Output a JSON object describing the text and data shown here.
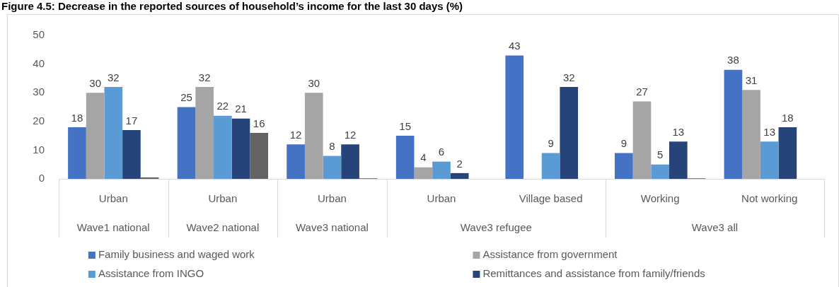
{
  "chart_data": {
    "type": "bar",
    "title": "Figure 4.5: Decrease in the reported sources of household’s income for the last 30 days (%)",
    "categories": [
      "Urban",
      "Urban",
      "Urban",
      "Urban",
      "Village based",
      "Working",
      "Not working"
    ],
    "annotations": [
      "Wave1 national",
      "Wave2 national",
      "Wave3 national",
      "Wave3 refugee",
      "Wave3 all"
    ],
    "series": [
      {
        "name": "Family business and waged work",
        "color": "#4472c4",
        "values": [
          18,
          25,
          12,
          15,
          43,
          9,
          38
        ],
        "value_labels": [
          "18",
          "25",
          "12",
          "15",
          "43",
          "9",
          "38"
        ]
      },
      {
        "name": "Assistance from government",
        "color": "#a5a5a5",
        "values": [
          30,
          32,
          30,
          4,
          null,
          27,
          31
        ],
        "value_labels": [
          "30",
          "32",
          "30",
          "4",
          null,
          "27",
          "31"
        ]
      },
      {
        "name": "Assistance from INGO",
        "color": "#5b9bd5",
        "values": [
          32,
          22,
          8,
          6,
          9,
          5,
          13
        ],
        "value_labels": [
          "32",
          "22",
          "8",
          "6",
          "9",
          "5",
          "13"
        ]
      },
      {
        "name": "Remittances and assistance from family/friends",
        "color": "#264478",
        "values": [
          17,
          21,
          12,
          2,
          32,
          13,
          18
        ],
        "value_labels": [
          "17",
          "21",
          "12",
          "2",
          "32",
          "13",
          "18"
        ]
      },
      {
        "color": "#636363",
        "values": [
          0.5,
          16,
          0.2,
          null,
          null,
          0.2,
          null
        ],
        "value_labels": [
          null,
          "16",
          null,
          null,
          null,
          null,
          null
        ]
      }
    ],
    "ylim": [
      0,
      50
    ],
    "yticks": [
      0,
      10,
      20,
      30,
      40,
      50
    ],
    "grid": false,
    "legend": "bottom"
  }
}
